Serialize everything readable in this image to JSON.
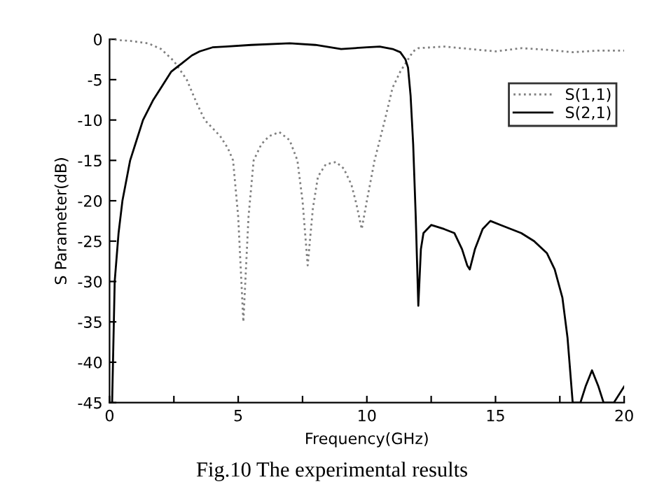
{
  "chart_data": {
    "type": "line",
    "xlabel": "Frequency(GHz)",
    "ylabel": "S Parameter(dB)",
    "annotations": [
      "Fig.10 The experimental results"
    ],
    "xlim": [
      0,
      20
    ],
    "ylim": [
      -45,
      0
    ],
    "xticks": [
      0,
      {
        "value": 2.5,
        "label": null
      },
      5,
      {
        "value": 7.5,
        "label": null
      },
      10,
      {
        "value": 12.5,
        "label": null
      },
      15,
      {
        "value": 17.5,
        "label": null
      },
      20
    ],
    "yticks": [
      -45,
      -40,
      -35,
      -30,
      -25,
      -20,
      -15,
      -10,
      -5,
      0
    ],
    "grid": false,
    "legend": "top right",
    "marker": "none",
    "series": [
      {
        "name": "S(1,1)",
        "color": "#808080",
        "line_style": "dotted",
        "x": [
          0,
          0.8,
          1.5,
          2.0,
          2.5,
          3.0,
          3.4,
          3.7,
          4.0,
          4.3,
          4.6,
          4.8,
          5.0,
          5.2,
          5.4,
          5.6,
          5.9,
          6.2,
          6.6,
          7.0,
          7.3,
          7.5,
          7.7,
          7.9,
          8.1,
          8.4,
          8.8,
          9.1,
          9.4,
          9.6,
          9.8,
          10.0,
          10.3,
          10.7,
          11.0,
          11.3,
          11.6,
          11.8,
          12.0,
          12.5,
          13.0,
          14.0,
          15.0,
          16.0,
          17.0,
          18.0,
          19.0,
          20.0
        ],
        "values": [
          0,
          -0.2,
          -0.5,
          -1.2,
          -2.7,
          -5,
          -8,
          -10,
          -11,
          -12,
          -13.5,
          -15,
          -22,
          -35,
          -22,
          -15,
          -13,
          -12,
          -11.5,
          -12.5,
          -15,
          -20,
          -28,
          -21,
          -17,
          -15.5,
          -15.2,
          -16,
          -18,
          -20.5,
          -23.5,
          -20,
          -15,
          -10,
          -6,
          -4,
          -2.5,
          -1.5,
          -1.1,
          -1,
          -0.9,
          -1.2,
          -1.5,
          -1.1,
          -1.3,
          -1.6,
          -1.4,
          -1.4
        ]
      },
      {
        "name": "S(2,1)",
        "color": "#000000",
        "line_style": "solid",
        "x": [
          0.1,
          0.2,
          0.35,
          0.5,
          0.8,
          1.0,
          1.3,
          1.7,
          2.0,
          2.4,
          2.8,
          3.2,
          3.5,
          4.0,
          4.5,
          5.5,
          7.0,
          8.0,
          9.0,
          10.0,
          10.5,
          11.0,
          11.3,
          11.5,
          11.6,
          11.7,
          11.8,
          11.9,
          12.0,
          12.1,
          12.2,
          12.5,
          13.0,
          13.4,
          13.7,
          13.9,
          14.0,
          14.2,
          14.5,
          14.8,
          15.2,
          15.6,
          16.0,
          16.5,
          17.0,
          17.3,
          17.6,
          17.8,
          18.0,
          18.3,
          18.5,
          18.75,
          19.0,
          19.2,
          19.6,
          20.0
        ],
        "values": [
          -45,
          -30,
          -24,
          -20,
          -15,
          -13,
          -10,
          -7.5,
          -6,
          -4,
          -3,
          -2,
          -1.5,
          -1,
          -0.9,
          -0.7,
          -0.5,
          -0.7,
          -1.2,
          -1,
          -0.9,
          -1.2,
          -1.6,
          -2.5,
          -3.5,
          -7,
          -13,
          -22,
          -33,
          -26,
          -24,
          -23,
          -23.5,
          -24,
          -26,
          -28,
          -28.5,
          -26,
          -23.5,
          -22.5,
          -23,
          -23.5,
          -24,
          -25,
          -26.5,
          -28.5,
          -32,
          -37,
          -45,
          -45,
          -43,
          -41,
          -43,
          -45,
          -45,
          -43
        ]
      }
    ]
  }
}
